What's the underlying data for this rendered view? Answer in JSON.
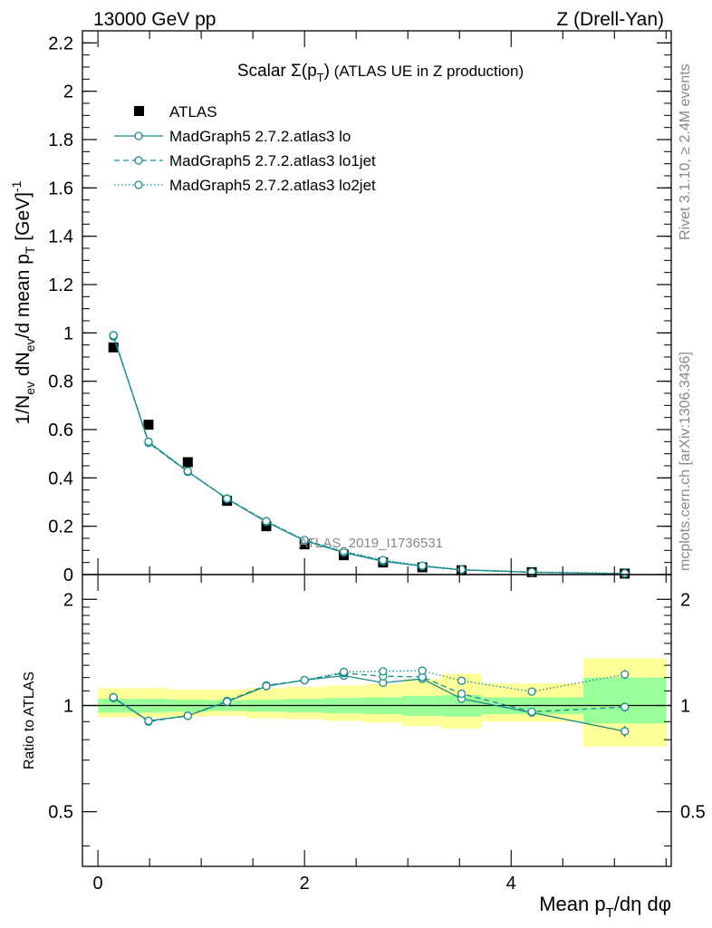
{
  "header": {
    "left": "13000 GeV pp",
    "right": "Z (Drell-Yan)"
  },
  "side_labels": {
    "rivet": "Rivet 3.1.10, ≥ 2.4M events",
    "mcplots": "mcplots.cern.ch [arXiv:1306.3436]"
  },
  "watermark": "ATLAS_2019_I1736531",
  "chart_data": [
    {
      "type": "scatter",
      "title": "Scalar Σ(pT) (ATLAS UE in Z production)",
      "title_parts": {
        "pre": "Scalar ",
        "sigma": "Σ(p",
        "sub": "T",
        "post": ")",
        "rest": " (ATLAS UE in Z production)"
      },
      "ylabel": "1/Nev dNev/d mean pT [GeV]-1",
      "xlim": [
        -0.15,
        5.55
      ],
      "ylim": [
        0,
        2.25
      ],
      "yticks": [
        0,
        0.2,
        0.4,
        0.6,
        0.8,
        1,
        1.2,
        1.4,
        1.6,
        1.8,
        2,
        2.2
      ],
      "ytick_labels": [
        "0",
        "0.2",
        "0.4",
        "0.6",
        "0.8",
        "1",
        "1.2",
        "1.4",
        "1.6",
        "1.8",
        "2",
        "2.2"
      ],
      "legend_position": "top-left",
      "x": [
        0.15,
        0.49,
        0.87,
        1.25,
        1.63,
        2.0,
        2.38,
        2.76,
        3.14,
        3.52,
        4.2,
        5.1
      ],
      "series": [
        {
          "name": "ATLAS",
          "style": "data",
          "color": "#000000",
          "values": [
            0.94,
            0.62,
            0.465,
            0.305,
            0.2,
            0.125,
            0.08,
            0.05,
            0.03,
            0.018,
            0.01,
            0.004
          ]
        },
        {
          "name": "MadGraph5 2.7.2.atlas3 lo",
          "style": "solid",
          "color": "#1b8a8a",
          "values": [
            0.985,
            0.548,
            0.426,
            0.313,
            0.218,
            0.14,
            0.091,
            0.055,
            0.035,
            0.019,
            0.0095,
            0.0035
          ]
        },
        {
          "name": "MadGraph5 2.7.2.atlas3 lo1jet",
          "style": "dashed",
          "color": "#1b8a8a",
          "values": [
            0.99,
            0.545,
            0.425,
            0.315,
            0.22,
            0.142,
            0.094,
            0.057,
            0.035,
            0.02,
            0.0095,
            0.0042
          ]
        },
        {
          "name": "MadGraph5 2.7.2.atlas3 lo2jet",
          "style": "dotted",
          "color": "#1b8a8a",
          "values": [
            0.99,
            0.55,
            0.428,
            0.314,
            0.221,
            0.143,
            0.096,
            0.06,
            0.037,
            0.021,
            0.011,
            0.0053
          ]
        }
      ]
    },
    {
      "type": "line",
      "ylabel": "Ratio to ATLAS",
      "xlabel": "Mean pT/dη dφ",
      "xlabel_parts": {
        "pre": "Mean p",
        "sub": "T",
        "post": "/dη dφ"
      },
      "xlim": [
        -0.15,
        5.55
      ],
      "ylim": [
        0.35,
        2.35
      ],
      "log_y": true,
      "xticks": [
        0,
        2,
        4
      ],
      "xtick_labels": [
        "0",
        "2",
        "4"
      ],
      "yticks": [
        0.5,
        1,
        2
      ],
      "ytick_labels": [
        "0.5",
        "1",
        "2"
      ],
      "bands": {
        "edges": [
          0.0,
          0.32,
          0.68,
          1.06,
          1.44,
          1.82,
          2.19,
          2.57,
          2.95,
          3.33,
          3.71,
          4.7,
          5.5
        ],
        "stat_low": [
          0.955,
          0.955,
          0.96,
          0.965,
          0.96,
          0.955,
          0.95,
          0.945,
          0.935,
          0.93,
          0.945,
          0.89
        ],
        "stat_high": [
          1.045,
          1.045,
          1.04,
          1.035,
          1.04,
          1.045,
          1.05,
          1.055,
          1.065,
          1.07,
          1.055,
          1.2
        ],
        "total_low": [
          0.925,
          0.925,
          0.93,
          0.935,
          0.92,
          0.915,
          0.905,
          0.895,
          0.875,
          0.86,
          0.9,
          0.765
        ],
        "total_high": [
          1.12,
          1.12,
          1.11,
          1.11,
          1.12,
          1.13,
          1.14,
          1.15,
          1.19,
          1.23,
          1.155,
          1.36
        ],
        "stat_color": "#99ff99",
        "total_color": "#ffff99"
      },
      "series": [
        {
          "name": "MadGraph5 2.7.2.atlas3 lo",
          "style": "solid",
          "color": "#1b8a8a",
          "values": [
            1.05,
            0.905,
            0.935,
            1.025,
            1.135,
            1.18,
            1.215,
            1.16,
            1.19,
            1.045,
            0.955,
            0.845
          ],
          "errors": [
            0.01,
            0.01,
            0.01,
            0.01,
            0.01,
            0.01,
            0.012,
            0.014,
            0.016,
            0.02,
            0.02,
            0.03
          ]
        },
        {
          "name": "MadGraph5 2.7.2.atlas3 lo1jet",
          "style": "dashed",
          "color": "#1b8a8a",
          "values": [
            1.055,
            0.9,
            0.935,
            1.03,
            1.14,
            1.18,
            1.235,
            1.21,
            1.205,
            1.08,
            0.96,
            0.99
          ],
          "errors": [
            0.01,
            0.01,
            0.01,
            0.01,
            0.01,
            0.01,
            0.012,
            0.014,
            0.016,
            0.02,
            0.02,
            0.03
          ]
        },
        {
          "name": "MadGraph5 2.7.2.atlas3 lo2jet",
          "style": "dotted",
          "color": "#1b8a8a",
          "values": [
            1.055,
            0.905,
            0.935,
            1.025,
            1.135,
            1.18,
            1.245,
            1.25,
            1.255,
            1.175,
            1.095,
            1.225
          ],
          "errors": [
            0.01,
            0.01,
            0.01,
            0.01,
            0.01,
            0.01,
            0.012,
            0.014,
            0.016,
            0.02,
            0.02,
            0.035
          ]
        }
      ]
    }
  ]
}
